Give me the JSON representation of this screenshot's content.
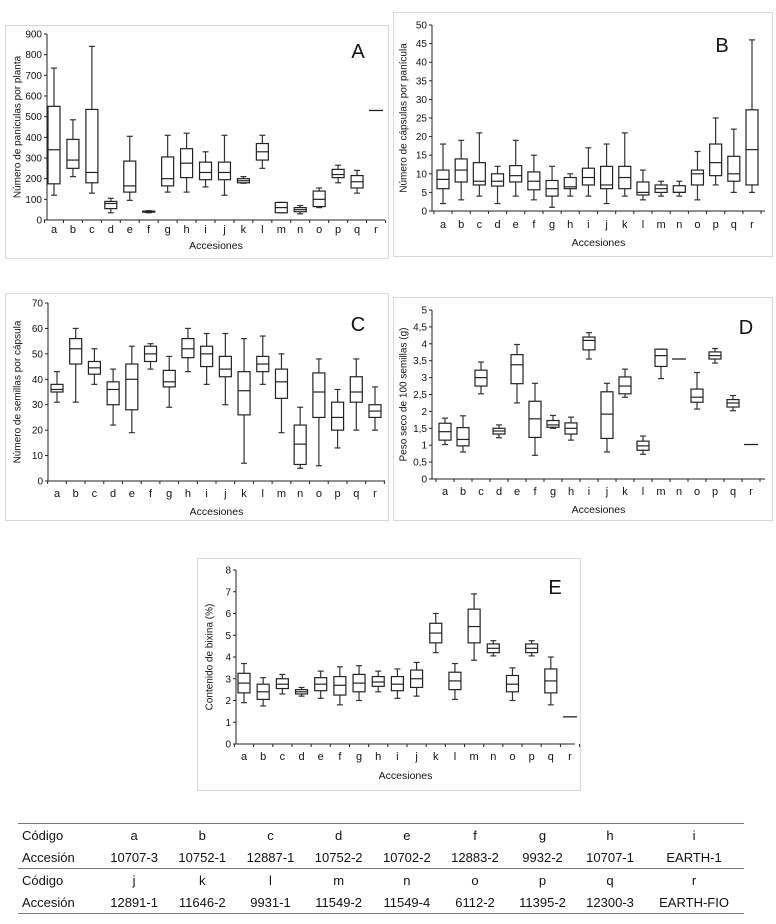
{
  "chart_data": [
    {
      "type": "box",
      "panel": "A",
      "ylabel": "Número de panículas por planta",
      "xlabel": "Accesiones",
      "ylim": [
        0,
        900
      ],
      "yticks": [
        "0",
        "100",
        "200",
        "300",
        "400",
        "500",
        "600",
        "700",
        "800",
        "900"
      ],
      "categories": [
        "a",
        "b",
        "c",
        "d",
        "e",
        "f",
        "g",
        "h",
        "i",
        "j",
        "k",
        "l",
        "m",
        "n",
        "o",
        "p",
        "q",
        "r"
      ],
      "boxes": [
        [
          120,
          175,
          340,
          550,
          735
        ],
        [
          210,
          250,
          290,
          390,
          485
        ],
        [
          130,
          180,
          230,
          535,
          840
        ],
        [
          35,
          55,
          80,
          90,
          105
        ],
        [
          95,
          135,
          165,
          285,
          405
        ],
        [
          35,
          38,
          40,
          43,
          45
        ],
        [
          135,
          165,
          200,
          305,
          410
        ],
        [
          135,
          205,
          275,
          345,
          420
        ],
        [
          160,
          195,
          230,
          280,
          330
        ],
        [
          120,
          195,
          230,
          280,
          410
        ],
        [
          178,
          180,
          190,
          200,
          210
        ],
        [
          250,
          290,
          330,
          370,
          410
        ],
        [
          35,
          35,
          60,
          85,
          85
        ],
        [
          30,
          40,
          50,
          60,
          70
        ],
        [
          60,
          65,
          100,
          140,
          155
        ],
        [
          180,
          205,
          220,
          245,
          265
        ],
        [
          130,
          155,
          185,
          215,
          240
        ],
        [
          530,
          530,
          530,
          530,
          530
        ]
      ]
    },
    {
      "type": "box",
      "panel": "B",
      "ylabel": "Número de cápsulas por panícula",
      "xlabel": "Accesiones",
      "ylim": [
        0,
        50
      ],
      "yticks": [
        "0",
        "5",
        "10",
        "15",
        "20",
        "25",
        "30",
        "35",
        "40",
        "45",
        "50"
      ],
      "categories": [
        "a",
        "b",
        "c",
        "d",
        "e",
        "f",
        "g",
        "h",
        "i",
        "j",
        "k",
        "l",
        "m",
        "n",
        "o",
        "p",
        "q",
        "r"
      ],
      "boxes": [
        [
          2,
          6,
          8.5,
          11,
          18
        ],
        [
          3,
          7.8,
          11,
          14,
          19
        ],
        [
          4,
          7,
          8,
          13,
          21
        ],
        [
          2,
          6.7,
          8,
          10,
          12
        ],
        [
          4,
          7.8,
          9.5,
          12.2,
          19
        ],
        [
          3,
          5.7,
          8,
          10.5,
          15
        ],
        [
          1,
          4,
          6,
          8.2,
          12
        ],
        [
          4,
          6,
          6.5,
          9,
          10
        ],
        [
          4,
          7,
          9,
          11.5,
          17
        ],
        [
          2,
          6,
          7,
          12,
          18
        ],
        [
          4,
          6,
          9,
          12,
          21
        ],
        [
          3,
          4.3,
          5,
          7.8,
          11
        ],
        [
          4,
          5,
          6,
          7,
          8
        ],
        [
          4,
          5,
          5,
          6.8,
          8
        ],
        [
          3,
          7,
          10,
          11,
          16
        ],
        [
          7,
          9.5,
          13,
          18,
          25
        ],
        [
          5,
          8,
          10,
          14.7,
          22
        ],
        [
          5,
          7,
          16.5,
          27.2,
          46
        ]
      ]
    },
    {
      "type": "box",
      "panel": "C",
      "ylabel": "Número de semillas por cápsula",
      "xlabel": "Accesiones",
      "ylim": [
        0,
        70
      ],
      "yticks": [
        "0",
        "10",
        "20",
        "30",
        "40",
        "50",
        "60",
        "70"
      ],
      "categories": [
        "a",
        "b",
        "c",
        "d",
        "e",
        "f",
        "g",
        "h",
        "i",
        "j",
        "k",
        "l",
        "m",
        "n",
        "o",
        "p",
        "q",
        "r"
      ],
      "boxes": [
        [
          31,
          35,
          36,
          38,
          43
        ],
        [
          31,
          46,
          52,
          56,
          60
        ],
        [
          38,
          42,
          44.5,
          47,
          52
        ],
        [
          22,
          30,
          36,
          39,
          44
        ],
        [
          19,
          28,
          40,
          46,
          53
        ],
        [
          44,
          47,
          50,
          53,
          54
        ],
        [
          29,
          37,
          39,
          43.5,
          49
        ],
        [
          43,
          48.5,
          52,
          56,
          60
        ],
        [
          38,
          45,
          50,
          53,
          58
        ],
        [
          30,
          41,
          44,
          49,
          58
        ],
        [
          7,
          26,
          35.5,
          43,
          56
        ],
        [
          38,
          43,
          46,
          49,
          57
        ],
        [
          19,
          32.5,
          39,
          44,
          50
        ],
        [
          5,
          6.5,
          14.5,
          22,
          29
        ],
        [
          6,
          25,
          35,
          42.5,
          48
        ],
        [
          13,
          20,
          25,
          31,
          36
        ],
        [
          20,
          31,
          35,
          41,
          48
        ],
        [
          20,
          25,
          27.5,
          30,
          37
        ]
      ]
    },
    {
      "type": "box",
      "panel": "D",
      "ylabel": "Peso seco de 100 semillas (g)",
      "xlabel": "Accesiones",
      "ylim": [
        0,
        5
      ],
      "yticks": [
        "0",
        "0,5",
        "1",
        "1,5",
        "2",
        "2,5",
        "3",
        "3,5",
        "4",
        "4,5",
        "5"
      ],
      "categories": [
        "a",
        "b",
        "c",
        "d",
        "e",
        "f",
        "g",
        "h",
        "i",
        "j",
        "k",
        "l",
        "m",
        "n",
        "o",
        "p",
        "q",
        "r"
      ],
      "boxes": [
        [
          1.02,
          1.15,
          1.4,
          1.65,
          1.8
        ],
        [
          0.8,
          0.98,
          1.17,
          1.52,
          1.87
        ],
        [
          2.52,
          2.75,
          3.0,
          3.22,
          3.46
        ],
        [
          1.22,
          1.33,
          1.42,
          1.5,
          1.6
        ],
        [
          2.25,
          2.82,
          3.38,
          3.68,
          3.98
        ],
        [
          0.7,
          1.23,
          1.78,
          2.3,
          2.83
        ],
        [
          1.5,
          1.53,
          1.6,
          1.73,
          1.88
        ],
        [
          1.15,
          1.33,
          1.5,
          1.66,
          1.83
        ],
        [
          3.55,
          3.82,
          4.1,
          4.2,
          4.33
        ],
        [
          0.8,
          1.2,
          1.92,
          2.58,
          2.83
        ],
        [
          2.42,
          2.52,
          2.75,
          3.02,
          3.25
        ],
        [
          0.73,
          0.85,
          0.98,
          1.12,
          1.27
        ],
        [
          2.97,
          3.33,
          3.65,
          3.84,
          3.84
        ],
        [
          3.55,
          3.55,
          3.55,
          3.55,
          3.55
        ],
        [
          2.07,
          2.27,
          2.42,
          2.66,
          3.15
        ],
        [
          3.43,
          3.55,
          3.65,
          3.76,
          3.86
        ],
        [
          2.02,
          2.13,
          2.25,
          2.35,
          2.47
        ],
        [
          1.02,
          1.02,
          1.02,
          1.02,
          1.02
        ]
      ]
    },
    {
      "type": "box",
      "panel": "E",
      "ylabel": "Contenido de bixina (%)",
      "xlabel": "Accesiones",
      "ylim": [
        0,
        8
      ],
      "yticks": [
        "0",
        "1",
        "2",
        "3",
        "4",
        "5",
        "6",
        "7",
        "8"
      ],
      "categories": [
        "a",
        "b",
        "c",
        "d",
        "e",
        "f",
        "g",
        "h",
        "i",
        "j",
        "k",
        "l",
        "m",
        "n",
        "o",
        "p",
        "q",
        "r"
      ],
      "boxes": [
        [
          1.9,
          2.35,
          2.8,
          3.25,
          3.7
        ],
        [
          1.75,
          2.05,
          2.4,
          2.75,
          3.05
        ],
        [
          2.3,
          2.55,
          2.75,
          3.0,
          3.2
        ],
        [
          2.2,
          2.3,
          2.4,
          2.5,
          2.6
        ],
        [
          2.1,
          2.45,
          2.75,
          3.05,
          3.35
        ],
        [
          1.8,
          2.25,
          2.7,
          3.1,
          3.55
        ],
        [
          2.0,
          2.4,
          2.8,
          3.2,
          3.6
        ],
        [
          2.4,
          2.65,
          2.85,
          3.1,
          3.35
        ],
        [
          2.1,
          2.45,
          2.75,
          3.1,
          3.45
        ],
        [
          2.2,
          2.6,
          3.0,
          3.4,
          3.75
        ],
        [
          4.2,
          4.65,
          5.1,
          5.55,
          6.0
        ],
        [
          2.05,
          2.5,
          2.9,
          3.3,
          3.7
        ],
        [
          3.85,
          4.65,
          5.4,
          6.2,
          6.9
        ],
        [
          4.05,
          4.2,
          4.4,
          4.6,
          4.75
        ],
        [
          2.0,
          2.4,
          2.75,
          3.15,
          3.5
        ],
        [
          4.05,
          4.2,
          4.4,
          4.6,
          4.75
        ],
        [
          1.8,
          2.35,
          2.9,
          3.45,
          4.0
        ],
        [
          1.25,
          1.25,
          1.25,
          1.25,
          1.25
        ]
      ]
    }
  ],
  "table": {
    "row_label_code": "Código",
    "row_label_accession": "Accesión",
    "rows": [
      {
        "codes": [
          "a",
          "b",
          "c",
          "d",
          "e",
          "f",
          "g",
          "h",
          "i"
        ],
        "accessions": [
          "10707-3",
          "10752-1",
          "12887-1",
          "10752-2",
          "10702-2",
          "12883-2",
          "9932-2",
          "10707-1",
          "EARTH-1"
        ]
      },
      {
        "codes": [
          "j",
          "k",
          "l",
          "m",
          "n",
          "o",
          "p",
          "q",
          "r"
        ],
        "accessions": [
          "12891-1",
          "11646-2",
          "9931-1",
          "11549-2",
          "11549-4",
          "6112-2",
          "11395-2",
          "12300-3",
          "EARTH-FIO"
        ]
      }
    ]
  }
}
